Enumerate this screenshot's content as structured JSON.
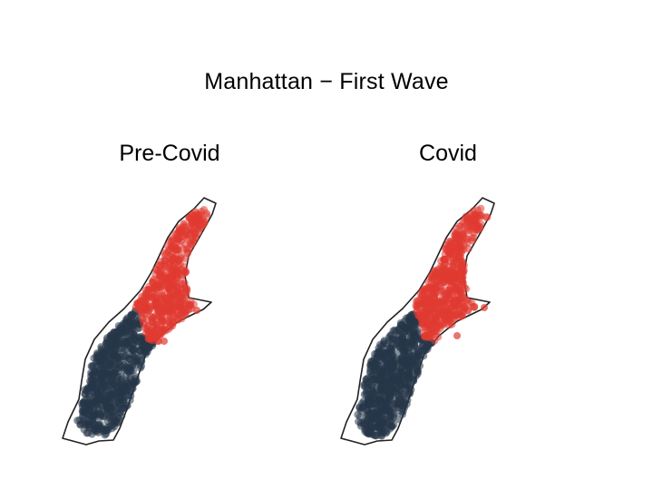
{
  "title": "Manhattan − First Wave",
  "panels": [
    {
      "title": "Pre-Covid"
    },
    {
      "title": "Covid"
    }
  ],
  "colors": {
    "cluster_upper": "#e03a32",
    "cluster_lower": "#263649",
    "outline": "#222222"
  }
}
